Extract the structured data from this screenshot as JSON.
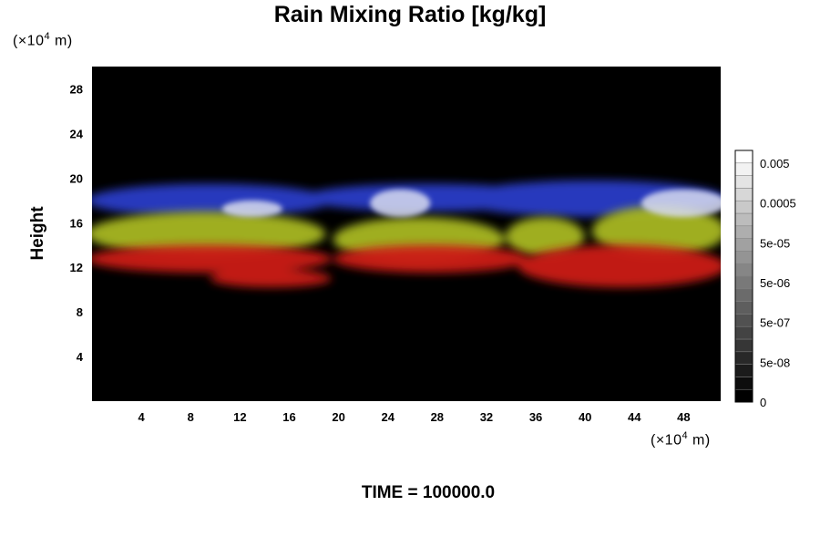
{
  "chart_data": {
    "type": "heatmap",
    "title": "Rain Mixing Ratio [kg/kg]",
    "ylabel": "Height",
    "xlabel": "",
    "y_unit": "(×10",
    "x_unit": "(×10",
    "unit_exp": "4",
    "unit_suffix": " m)",
    "footer": "TIME = 100000.0",
    "xlim": [
      0,
      51
    ],
    "ylim": [
      0,
      30
    ],
    "xticks": [
      4,
      8,
      12,
      16,
      20,
      24,
      28,
      32,
      36,
      40,
      44,
      48
    ],
    "yticks": [
      4,
      8,
      12,
      16,
      20,
      24,
      28
    ],
    "colorbar": {
      "labels": [
        "0.005",
        "0.0005",
        "5e-05",
        "5e-06",
        "5e-07",
        "5e-08",
        "0"
      ],
      "levels": 20,
      "colors": [
        "#000000",
        "#ffffff"
      ]
    },
    "layers": [
      {
        "name": "blue",
        "color": "#2a3cc8",
        "segments": [
          {
            "x": [
              0,
              19
            ],
            "y": [
              16.5,
              19.5
            ]
          },
          {
            "x": [
              17.5,
              37
            ],
            "y": [
              17,
              19.5
            ]
          },
          {
            "x": [
              30,
              51
            ],
            "y": [
              16.5,
              19.8
            ]
          }
        ]
      },
      {
        "name": "yellow",
        "color": "#a8b820",
        "segments": [
          {
            "x": [
              0,
              18.5
            ],
            "y": [
              13,
              17
            ]
          },
          {
            "x": [
              20,
              33
            ],
            "y": [
              12.5,
              16.5
            ]
          },
          {
            "x": [
              34,
              39.5
            ],
            "y": [
              13,
              16.5
            ]
          },
          {
            "x": [
              41,
              51
            ],
            "y": [
              13,
              17.5
            ]
          }
        ]
      },
      {
        "name": "red",
        "color": "#cc1a12",
        "segments": [
          {
            "x": [
              0,
              19
            ],
            "y": [
              11.5,
              14
            ]
          },
          {
            "x": [
              20,
              35
            ],
            "y": [
              11.5,
              14
            ]
          },
          {
            "x": [
              35,
              51
            ],
            "y": [
              10.2,
              14
            ]
          },
          {
            "x": [
              10,
              19
            ],
            "y": [
              10.2,
              11.8
            ]
          }
        ]
      },
      {
        "name": "white",
        "color": "#d8dcf0",
        "segments": [
          {
            "x": [
              23,
              27
            ],
            "y": [
              16.5,
              19
            ]
          },
          {
            "x": [
              45,
              51
            ],
            "y": [
              16.5,
              19
            ]
          },
          {
            "x": [
              11,
              15
            ],
            "y": [
              16.5,
              18
            ]
          }
        ]
      }
    ]
  }
}
